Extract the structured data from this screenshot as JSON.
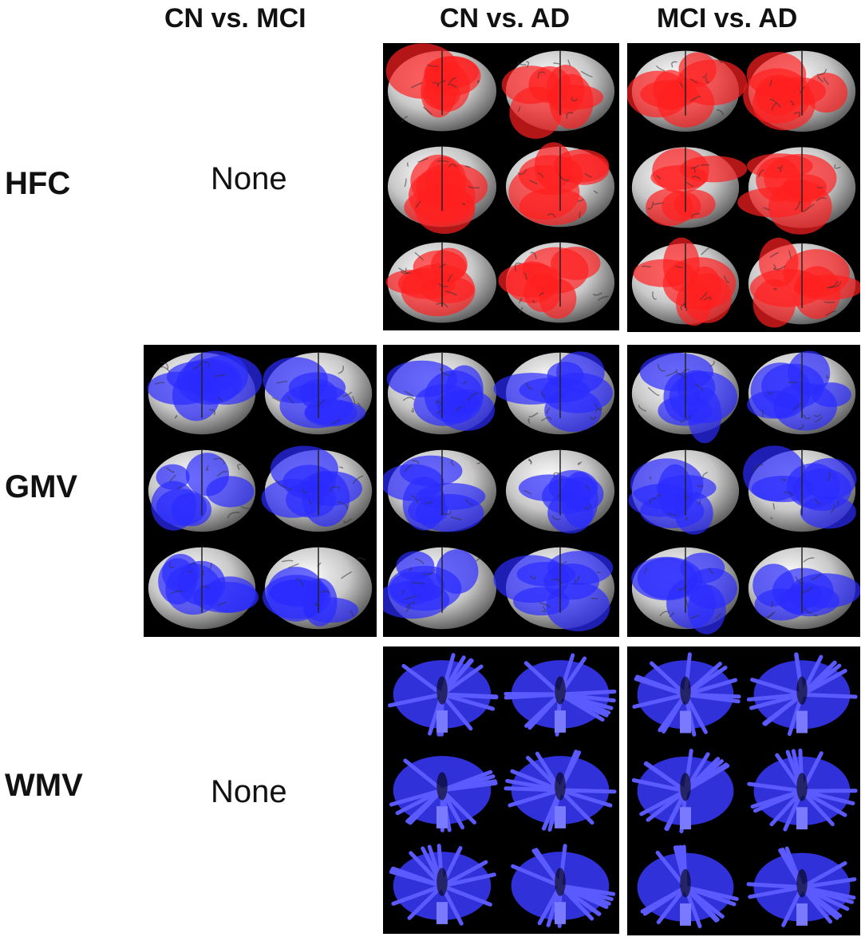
{
  "columns": [
    "CN vs. MCI",
    "CN vs. AD",
    "MCI vs. AD"
  ],
  "rows": [
    {
      "label": "HFC",
      "cells": [
        "None",
        "map",
        "map"
      ],
      "color": "#ff2020"
    },
    {
      "label": "GMV",
      "cells": [
        "map",
        "map",
        "map"
      ],
      "color": "#2b2bff"
    },
    {
      "label": "WMV",
      "cells": [
        "None",
        "map",
        "map"
      ],
      "color": "#3a3aff"
    }
  ],
  "colors": {
    "hfc_overlay": "#ff2020",
    "gmv_overlay": "#2b2bff",
    "wmv_overlay": "#3a3aff",
    "brain_gray": "#c8c8c8",
    "panel_bg": "#000000"
  }
}
